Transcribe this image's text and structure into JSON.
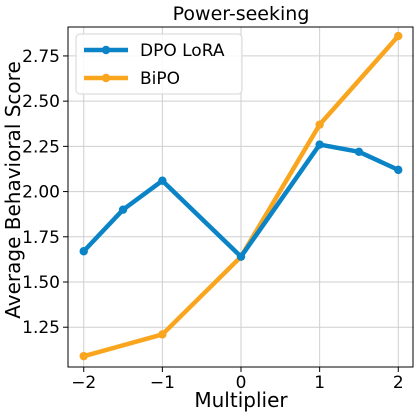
{
  "chart_data": {
    "type": "line",
    "title": "Power-seeking",
    "xlabel": "Multiplier",
    "ylabel": "Average Behavioral Score",
    "xlim": [
      -2.2,
      2.2
    ],
    "ylim": [
      1.03,
      2.91
    ],
    "xticks": [
      -2,
      -1,
      0,
      1,
      2
    ],
    "xtick_labels": [
      "−2",
      "−1",
      "0",
      "1",
      "2"
    ],
    "yticks": [
      1.25,
      1.5,
      1.75,
      2.0,
      2.25,
      2.5,
      2.75
    ],
    "ytick_labels": [
      "1.25",
      "1.50",
      "1.75",
      "2.00",
      "2.25",
      "2.50",
      "2.75"
    ],
    "grid": true,
    "legend_position": "top-left",
    "series": [
      {
        "name": "DPO LoRA",
        "color": "#0a84c6",
        "x": [
          -2,
          -1.5,
          -1,
          0,
          1,
          1.5,
          2
        ],
        "y": [
          1.67,
          1.9,
          2.06,
          1.64,
          2.26,
          2.22,
          2.12
        ]
      },
      {
        "name": "BiPO",
        "color": "#f9a51e",
        "x": [
          -2,
          -1,
          0,
          1,
          2
        ],
        "y": [
          1.09,
          1.21,
          1.64,
          2.37,
          2.86
        ]
      }
    ]
  }
}
